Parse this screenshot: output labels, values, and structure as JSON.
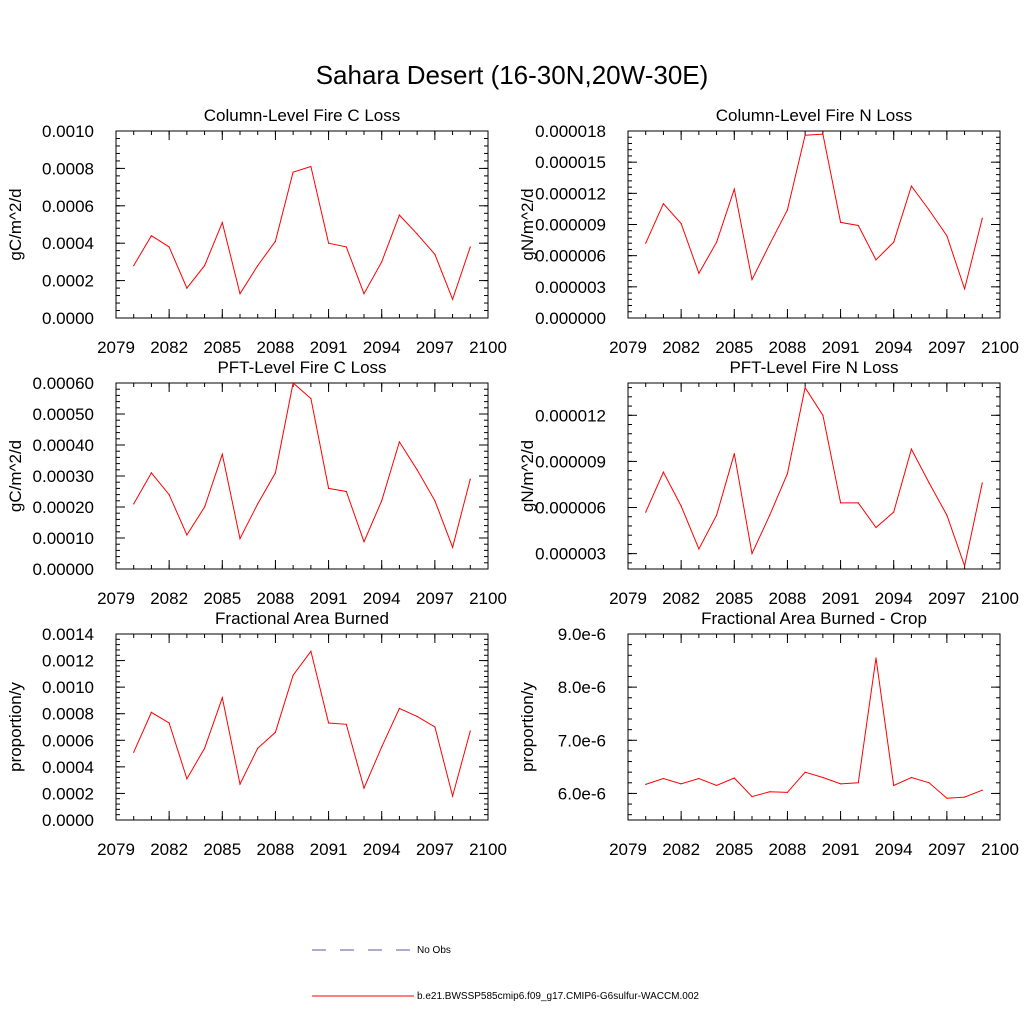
{
  "title": "Sahara Desert (16-30N,20W-30E)",
  "colors": {
    "model": "#ff0000",
    "obs": "#5a5aa0",
    "axis": "#000000"
  },
  "legend": {
    "obs_label": "No Obs",
    "model_label": "b.e21.BWSSP585cmip6.f09_g17.CMIP6-G6sulfur-WACCM.002"
  },
  "chart_data": [
    {
      "type": "line",
      "title": "Column-Level Fire C Loss",
      "ylabel": "gC/m^2/d",
      "xlim": [
        2079,
        2100
      ],
      "ylim": [
        0,
        0.001
      ],
      "xticks": [
        "2079",
        "2082",
        "2085",
        "2088",
        "2091",
        "2094",
        "2097",
        "2100"
      ],
      "yticks": [
        "0.0000",
        "0.0002",
        "0.0004",
        "0.0006",
        "0.0008",
        "0.0010"
      ],
      "x": [
        2080,
        2081,
        2082,
        2083,
        2084,
        2085,
        2086,
        2087,
        2088,
        2089,
        2090,
        2091,
        2092,
        2093,
        2094,
        2095,
        2096,
        2097,
        2098,
        2099
      ],
      "series": [
        {
          "values": [
            0.00028,
            0.00044,
            0.00038,
            0.00016,
            0.00028,
            0.00051,
            0.00013,
            0.00028,
            0.00041,
            0.00078,
            0.00081,
            0.0004,
            0.00038,
            0.00013,
            0.0003,
            0.00055,
            0.00045,
            0.00034,
            0.0001,
            0.00038
          ]
        }
      ]
    },
    {
      "type": "line",
      "title": "Column-Level Fire N Loss",
      "ylabel": "gN/m^2/d",
      "xlim": [
        2079,
        2100
      ],
      "ylim": [
        0,
        1.8e-05
      ],
      "xticks": [
        "2079",
        "2082",
        "2085",
        "2088",
        "2091",
        "2094",
        "2097",
        "2100"
      ],
      "yticks": [
        "0.000000",
        "0.000003",
        "0.000006",
        "0.000009",
        "0.000012",
        "0.000015",
        "0.000018"
      ],
      "x": [
        2080,
        2081,
        2082,
        2083,
        2084,
        2085,
        2086,
        2087,
        2088,
        2089,
        2090,
        2091,
        2092,
        2093,
        2094,
        2095,
        2096,
        2097,
        2098,
        2099
      ],
      "series": [
        {
          "values": [
            7.2e-06,
            1.1e-05,
            9.1e-06,
            4.3e-06,
            7.3e-06,
            1.24e-05,
            3.7e-06,
            7.1e-06,
            1.04e-05,
            1.76e-05,
            1.77e-05,
            9.2e-06,
            8.9e-06,
            5.6e-06,
            7.3e-06,
            1.27e-05,
            1.04e-05,
            7.9e-06,
            2.8e-06,
            9.6e-06
          ]
        }
      ]
    },
    {
      "type": "line",
      "title": "PFT-Level Fire C Loss",
      "ylabel": "gC/m^2/d",
      "xlim": [
        2079,
        2100
      ],
      "ylim": [
        0,
        0.0006
      ],
      "xticks": [
        "2079",
        "2082",
        "2085",
        "2088",
        "2091",
        "2094",
        "2097",
        "2100"
      ],
      "yticks": [
        "0.00000",
        "0.00010",
        "0.00020",
        "0.00030",
        "0.00040",
        "0.00050",
        "0.00060"
      ],
      "x": [
        2080,
        2081,
        2082,
        2083,
        2084,
        2085,
        2086,
        2087,
        2088,
        2089,
        2090,
        2091,
        2092,
        2093,
        2094,
        2095,
        2096,
        2097,
        2098,
        2099
      ],
      "series": [
        {
          "values": [
            0.00021,
            0.00031,
            0.00024,
            0.00011,
            0.0002,
            0.00037,
            9.8e-05,
            0.00021,
            0.00031,
            0.0006,
            0.00055,
            0.00026,
            0.00025,
            8.8e-05,
            0.00022,
            0.00041,
            0.00032,
            0.00022,
            7e-05,
            0.00029
          ]
        }
      ]
    },
    {
      "type": "line",
      "title": "PFT-Level Fire N Loss",
      "ylabel": "gN/m^2/d",
      "xlim": [
        2079,
        2100
      ],
      "ylim": [
        2e-06,
        1.41e-05
      ],
      "xticks": [
        "2079",
        "2082",
        "2085",
        "2088",
        "2091",
        "2094",
        "2097",
        "2100"
      ],
      "yticks": [
        "0.000003",
        "0.000006",
        "0.000009",
        "0.000012"
      ],
      "ytick_values": [
        3e-06,
        6e-06,
        9e-06,
        1.2e-05
      ],
      "x": [
        2080,
        2081,
        2082,
        2083,
        2084,
        2085,
        2086,
        2087,
        2088,
        2089,
        2090,
        2091,
        2092,
        2093,
        2094,
        2095,
        2096,
        2097,
        2098,
        2099
      ],
      "series": [
        {
          "values": [
            5.7e-06,
            8.3e-06,
            6.1e-06,
            3.3e-06,
            5.5e-06,
            9.5e-06,
            3e-06,
            5.5e-06,
            8.2e-06,
            1.38e-05,
            1.2e-05,
            6.3e-06,
            6.3e-06,
            4.7e-06,
            5.7e-06,
            9.8e-06,
            7.6e-06,
            5.5e-06,
            2.2e-06,
            7.6e-06
          ]
        }
      ]
    },
    {
      "type": "line",
      "title": "Fractional Area Burned",
      "ylabel": "proportion/y",
      "xlim": [
        2079,
        2100
      ],
      "ylim": [
        0,
        0.0014
      ],
      "xticks": [
        "2079",
        "2082",
        "2085",
        "2088",
        "2091",
        "2094",
        "2097",
        "2100"
      ],
      "yticks": [
        "0.0000",
        "0.0002",
        "0.0004",
        "0.0006",
        "0.0008",
        "0.0010",
        "0.0012",
        "0.0014"
      ],
      "x": [
        2080,
        2081,
        2082,
        2083,
        2084,
        2085,
        2086,
        2087,
        2088,
        2089,
        2090,
        2091,
        2092,
        2093,
        2094,
        2095,
        2096,
        2097,
        2098,
        2099
      ],
      "series": [
        {
          "values": [
            0.00051,
            0.00081,
            0.00073,
            0.00031,
            0.00054,
            0.00092,
            0.00027,
            0.00054,
            0.00066,
            0.00109,
            0.00127,
            0.00073,
            0.00072,
            0.00024,
            0.00055,
            0.00084,
            0.00078,
            0.0007,
            0.00018,
            0.00067
          ]
        }
      ]
    },
    {
      "type": "line",
      "title": "Fractional Area Burned - Crop",
      "ylabel": "proportion/y",
      "xlim": [
        2079,
        2100
      ],
      "ylim": [
        5.5e-06,
        9e-06
      ],
      "xticks": [
        "2079",
        "2082",
        "2085",
        "2088",
        "2091",
        "2094",
        "2097",
        "2100"
      ],
      "yticks": [
        "6.0e-6",
        "7.0e-6",
        "8.0e-6",
        "9.0e-6"
      ],
      "ytick_values": [
        6e-06,
        7e-06,
        8e-06,
        9e-06
      ],
      "x": [
        2080,
        2081,
        2082,
        2083,
        2084,
        2085,
        2086,
        2087,
        2088,
        2089,
        2090,
        2091,
        2092,
        2093,
        2094,
        2095,
        2096,
        2097,
        2098,
        2099
      ],
      "series": [
        {
          "values": [
            6.17e-06,
            6.28e-06,
            6.18e-06,
            6.28e-06,
            6.15e-06,
            6.29e-06,
            5.94e-06,
            6.03e-06,
            6.02e-06,
            6.4e-06,
            6.3e-06,
            6.18e-06,
            6.2e-06,
            8.55e-06,
            6.15e-06,
            6.3e-06,
            6.2e-06,
            5.91e-06,
            5.93e-06,
            6.06e-06
          ]
        }
      ]
    }
  ]
}
